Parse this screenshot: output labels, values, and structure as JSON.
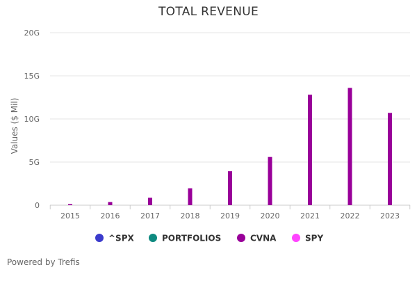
{
  "chart_data": {
    "type": "bar",
    "title": "TOTAL REVENUE",
    "xlabel": "",
    "ylabel": "Values ($ Mil)",
    "categories": [
      "2015",
      "2016",
      "2017",
      "2018",
      "2019",
      "2020",
      "2021",
      "2022",
      "2023"
    ],
    "ylim": [
      0,
      20
    ],
    "yticks": [
      {
        "value": 0,
        "label": "0"
      },
      {
        "value": 5,
        "label": "5G"
      },
      {
        "value": 10,
        "label": "10G"
      },
      {
        "value": 15,
        "label": "15G"
      },
      {
        "value": 20,
        "label": "20G"
      }
    ],
    "grid": true,
    "legend_position": "bottom",
    "series": [
      {
        "name": "^SPX",
        "color": "#3b3bcc",
        "values": [
          null,
          null,
          null,
          null,
          null,
          null,
          null,
          null,
          null
        ]
      },
      {
        "name": "PORTFOLIOS",
        "color": "#0e8a80",
        "values": [
          null,
          null,
          null,
          null,
          null,
          null,
          null,
          null,
          null
        ]
      },
      {
        "name": "CVNA",
        "color": "#990099",
        "values": [
          0.13,
          0.37,
          0.86,
          1.96,
          3.94,
          5.59,
          12.81,
          13.6,
          10.7
        ]
      },
      {
        "name": "SPY",
        "color": "#ff44ff",
        "values": [
          null,
          null,
          null,
          null,
          null,
          null,
          null,
          null,
          null
        ]
      }
    ]
  },
  "credits": "Powered by Trefis"
}
